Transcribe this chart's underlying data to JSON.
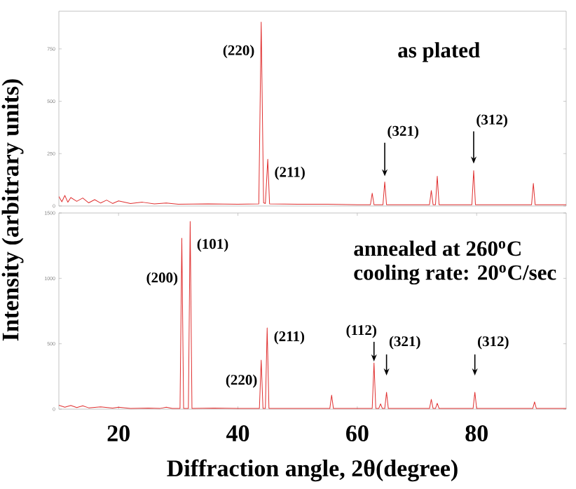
{
  "chart_data": [
    {
      "type": "line",
      "ylabel": "Intensity (arbitrary units)",
      "color": "#e03030",
      "xlim": [
        10,
        95
      ],
      "ylim": [
        0,
        930
      ],
      "yticks": [
        0,
        250,
        500,
        750
      ],
      "tick_labels": "y",
      "x": [
        10,
        10.5,
        11,
        11.5,
        12,
        13,
        14,
        15,
        16,
        17,
        18,
        19,
        20,
        22,
        24,
        26,
        28,
        30,
        35,
        40,
        43.5,
        43.9,
        44.3,
        44.6,
        45.0,
        45.3,
        50,
        55,
        60,
        62.2,
        62.5,
        62.8,
        64.3,
        64.6,
        64.9,
        70,
        72.1,
        72.4,
        72.7,
        73.1,
        73.4,
        73.7,
        79.2,
        79.5,
        79.8,
        85,
        89.2,
        89.5,
        89.8,
        95
      ],
      "values": [
        45,
        20,
        50,
        18,
        40,
        22,
        38,
        15,
        30,
        14,
        28,
        12,
        24,
        12,
        18,
        10,
        14,
        8,
        10,
        8,
        10,
        878,
        15,
        12,
        223,
        10,
        8,
        8,
        6,
        6,
        61,
        6,
        6,
        115,
        6,
        6,
        6,
        74,
        6,
        6,
        142,
        6,
        6,
        169,
        6,
        6,
        6,
        108,
        6,
        6
      ],
      "annotations": [
        {
          "text": "(220)",
          "x": 43.9,
          "y": 878
        },
        {
          "text": "(211)",
          "x": 45.0,
          "y": 223
        },
        {
          "text": "(321)",
          "x": 64.6,
          "y": 115
        },
        {
          "text": "(312)",
          "x": 79.5,
          "y": 169
        },
        "as plated"
      ]
    },
    {
      "type": "line",
      "xlabel": "Diffraction angle, 2θ(degree)",
      "color": "#e03030",
      "xlim": [
        10,
        95
      ],
      "ylim": [
        0,
        1500
      ],
      "xticks": [
        20,
        40,
        60,
        80
      ],
      "yticks": [
        0,
        500,
        1000,
        1500
      ],
      "x": [
        10,
        11,
        12,
        13,
        14,
        15,
        17,
        19,
        20,
        22,
        25,
        27,
        28,
        29,
        30.3,
        30.6,
        30.9,
        31.7,
        32.0,
        32.3,
        36,
        40,
        43.6,
        43.9,
        44.2,
        44.6,
        44.9,
        45.2,
        50,
        55.4,
        55.7,
        56.0,
        62.5,
        62.8,
        63.1,
        63.6,
        63.9,
        64.2,
        64.6,
        64.9,
        65.2,
        72.1,
        72.4,
        72.7,
        73.1,
        73.4,
        73.7,
        79.4,
        79.7,
        80.0,
        89.4,
        89.7,
        90,
        95
      ],
      "values": [
        30,
        15,
        28,
        12,
        25,
        10,
        18,
        8,
        15,
        6,
        8,
        6,
        15,
        5,
        5,
        1307,
        5,
        5,
        1436,
        5,
        8,
        5,
        5,
        375,
        5,
        5,
        622,
        5,
        5,
        5,
        107,
        5,
        5,
        354,
        5,
        5,
        40,
        5,
        5,
        129,
        5,
        5,
        75,
        5,
        5,
        45,
        5,
        5,
        129,
        5,
        5,
        55,
        5,
        5
      ],
      "annotations": [
        {
          "text": "(200)",
          "x": 30.6,
          "y": 1307
        },
        {
          "text": "(101)",
          "x": 32.0,
          "y": 1436
        },
        {
          "text": "(220)",
          "x": 43.9,
          "y": 375
        },
        {
          "text": "(211)",
          "x": 44.9,
          "y": 622
        },
        {
          "text": "(112)",
          "x": 62.8,
          "y": 354
        },
        {
          "text": "(321)",
          "x": 64.9,
          "y": 129
        },
        {
          "text": "(312)",
          "x": 79.7,
          "y": 129
        },
        "annealed at 260$^{o}$C",
        "cooling rate: 20$^{o}$C/sec"
      ]
    }
  ]
}
